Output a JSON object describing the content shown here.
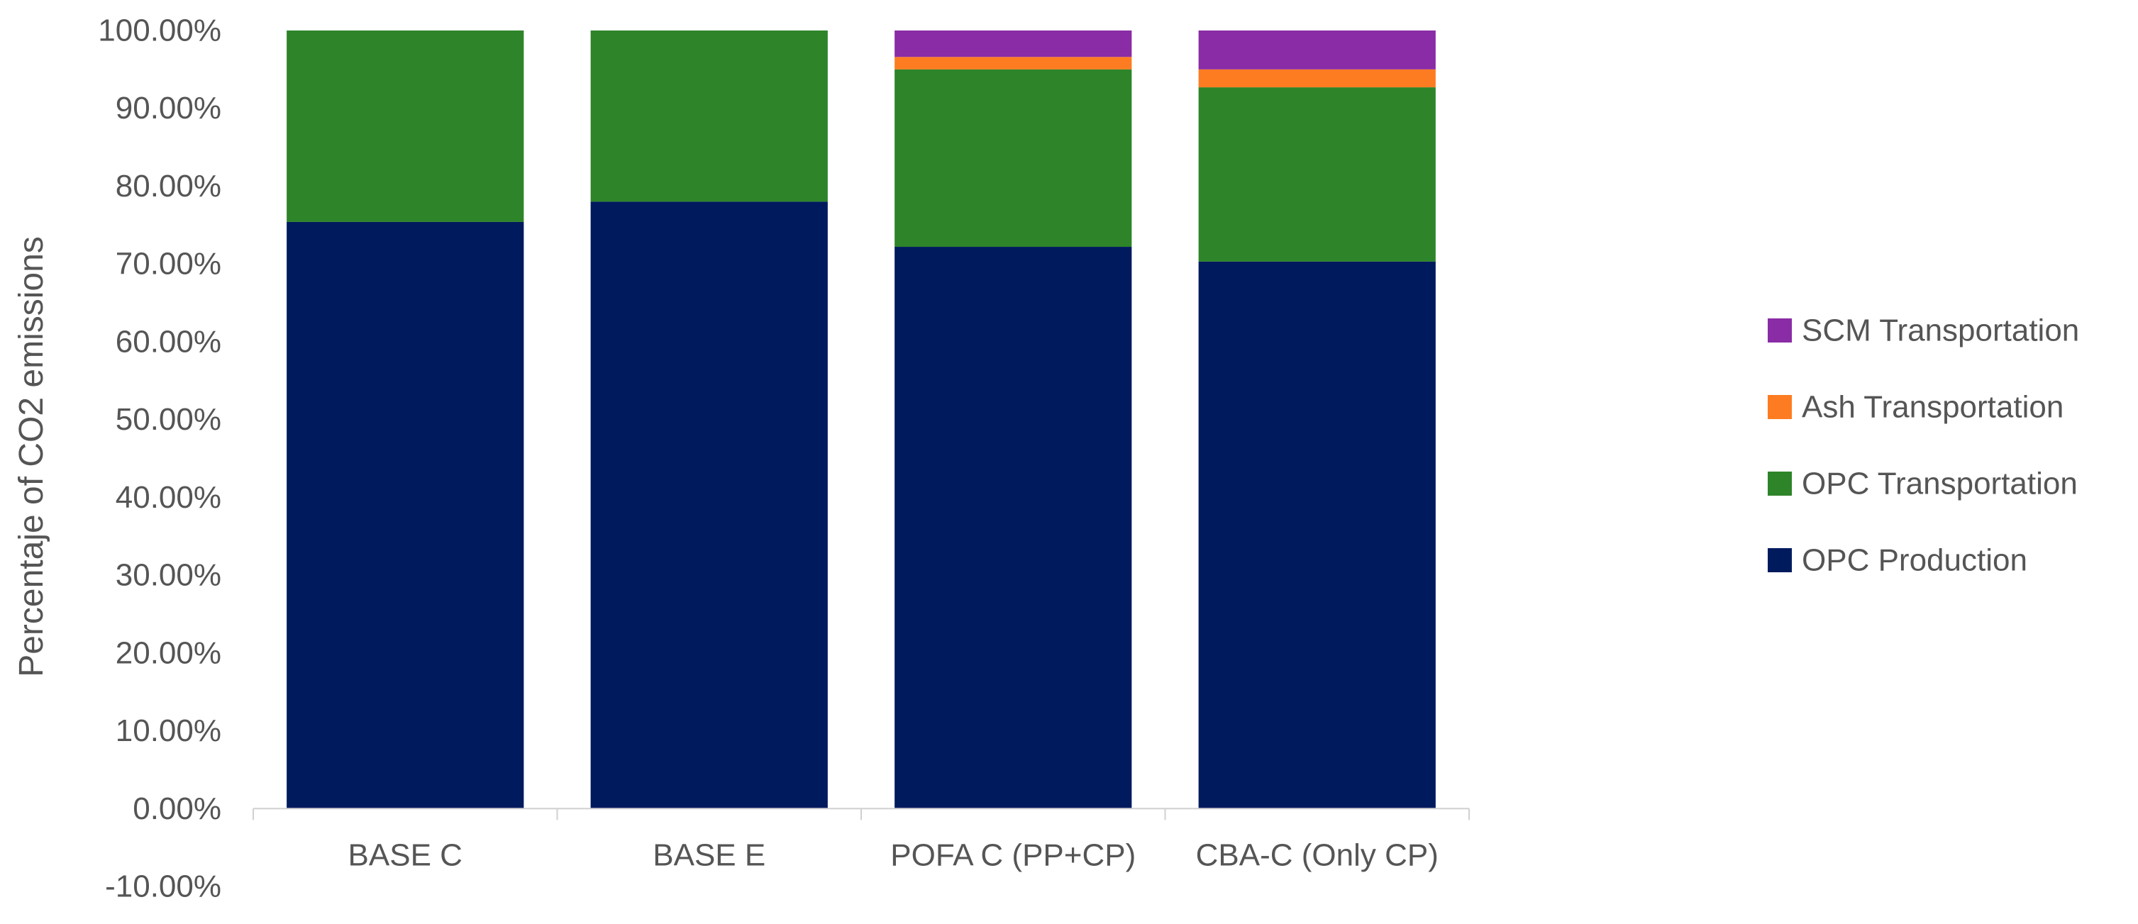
{
  "chart_data": {
    "type": "bar",
    "stacked": true,
    "title": "",
    "xlabel": "",
    "ylabel": "Percentaje of CO2 emissions",
    "ylim": [
      -10,
      100
    ],
    "yticks": [
      "-10.00%",
      "0.00%",
      "10.00%",
      "20.00%",
      "30.00%",
      "40.00%",
      "50.00%",
      "60.00%",
      "70.00%",
      "80.00%",
      "90.00%",
      "100.00%"
    ],
    "ytick_values": [
      -10,
      0,
      10,
      20,
      30,
      40,
      50,
      60,
      70,
      80,
      90,
      100
    ],
    "grid": false,
    "legend_position": "right",
    "categories": [
      "BASE C",
      "BASE E",
      "POFA C (PP+CP)",
      "CBA-C (Only CP)"
    ],
    "series": [
      {
        "name": "OPC Production",
        "color": "#001a5e",
        "values": [
          75.4,
          78.0,
          72.2,
          70.3
        ]
      },
      {
        "name": "OPC Transportation",
        "color": "#2e8429",
        "values": [
          24.6,
          22.0,
          22.8,
          22.4
        ]
      },
      {
        "name": "Ash Transportation",
        "color": "#fd7c21",
        "values": [
          0,
          0,
          1.6,
          2.3
        ]
      },
      {
        "name": "SCM Transportation",
        "color": "#8a2ca6",
        "values": [
          0,
          0,
          3.4,
          5.0
        ]
      }
    ],
    "legend_order": [
      "SCM Transportation",
      "Ash Transportation",
      "OPC Transportation",
      "OPC Production"
    ]
  }
}
